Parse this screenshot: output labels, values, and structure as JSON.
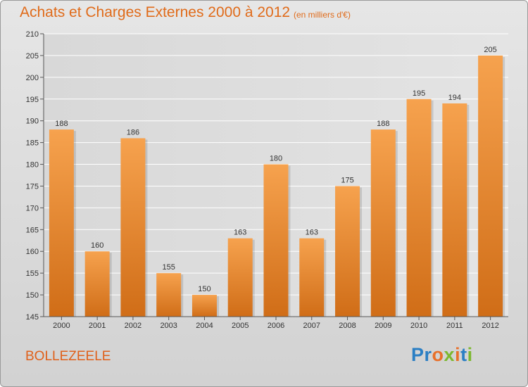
{
  "title": "Achats et Charges Externes 2000 à 2012",
  "subtitle": "(en milliers d'€)",
  "commune": "BOLLEZEELE",
  "brand": {
    "letters": [
      {
        "ch": "P",
        "color": "#2b7fc4"
      },
      {
        "ch": "r",
        "color": "#2b7fc4"
      },
      {
        "ch": "o",
        "color": "#e8702a"
      },
      {
        "ch": "x",
        "color": "#7cb82f"
      },
      {
        "ch": "i",
        "color": "#e8702a"
      },
      {
        "ch": "t",
        "color": "#2b7fc4"
      },
      {
        "ch": "i",
        "color": "#7cb82f"
      }
    ]
  },
  "colors": {
    "bar_top": "#f6a24e",
    "bar_bottom": "#d06d17",
    "title": "#e06b1a",
    "plot_bg": "#dcdcdc"
  },
  "chart_data": {
    "type": "bar",
    "categories": [
      "2000",
      "2001",
      "2002",
      "2003",
      "2004",
      "2005",
      "2006",
      "2007",
      "2008",
      "2009",
      "2010",
      "2011",
      "2012"
    ],
    "values": [
      188,
      160,
      186,
      155,
      150,
      163,
      180,
      163,
      175,
      188,
      195,
      194,
      205
    ],
    "yticks": [
      145,
      150,
      155,
      160,
      165,
      170,
      175,
      180,
      185,
      190,
      195,
      200,
      205,
      210
    ],
    "ylim": [
      145,
      210
    ],
    "grid": true,
    "legend": "none"
  }
}
